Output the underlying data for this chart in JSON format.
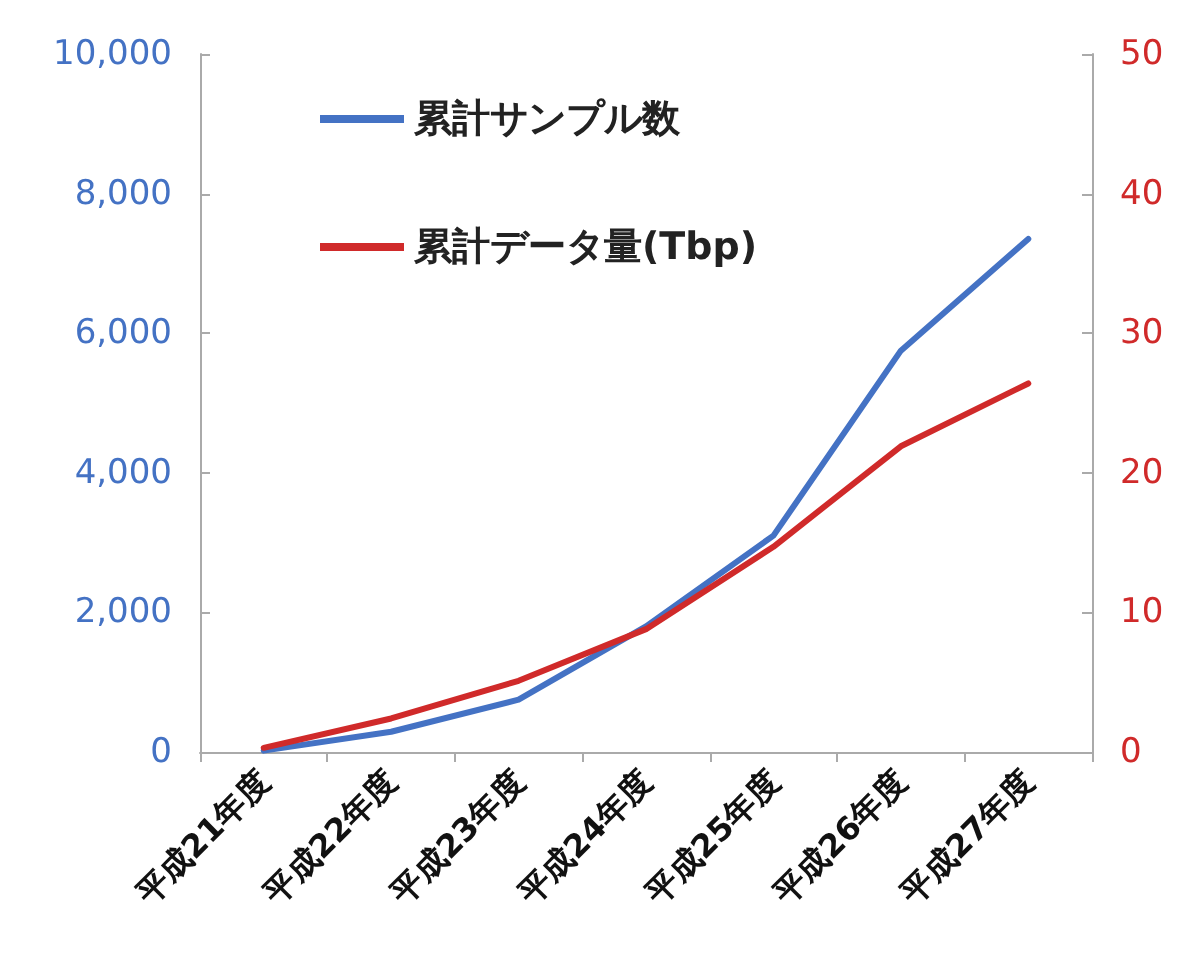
{
  "chart_data": {
    "type": "line",
    "categories": [
      "平成21年度",
      "平成22年度",
      "平成23年度",
      "平成24年度",
      "平成25年度",
      "平成26年度",
      "平成27年度"
    ],
    "series": [
      {
        "name": "累計サンプル数",
        "color": "#4472c4",
        "values": [
          20,
          290,
          750,
          1800,
          3100,
          5750,
          7350
        ]
      },
      {
        "name": "累計データ量(Tbp)",
        "color": "#d02a2a",
        "axis": "y2",
        "values": [
          0.3,
          2.4,
          5.1,
          8.8,
          14.7,
          21.9,
          26.4
        ]
      }
    ],
    "ylim": [
      0,
      10000
    ],
    "yticks": [
      {
        "value": 0,
        "label": "0"
      },
      {
        "value": 2000,
        "label": "2,000"
      },
      {
        "value": 4000,
        "label": "4,000"
      },
      {
        "value": 6000,
        "label": "6,000"
      },
      {
        "value": 8000,
        "label": "8,000"
      },
      {
        "value": 10000,
        "label": "10,000"
      }
    ],
    "y2lim": [
      0,
      50
    ],
    "y2ticks": [
      0,
      10,
      20,
      30,
      40,
      50
    ],
    "grid": false,
    "legend": "top left",
    "marker": "none",
    "line_style": "solid"
  }
}
